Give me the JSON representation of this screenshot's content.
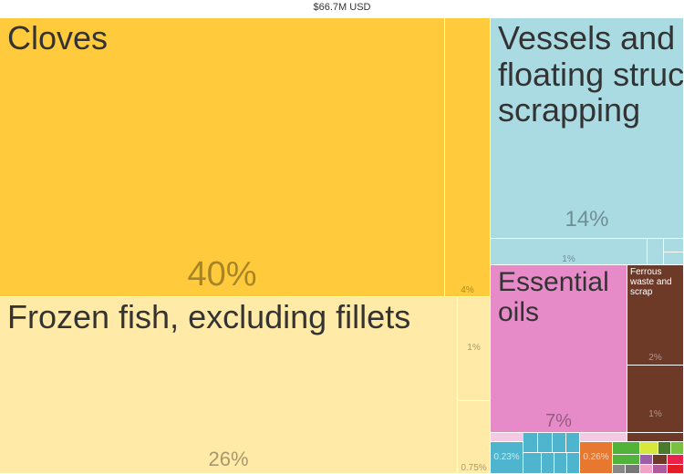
{
  "total": "$66.7M USD",
  "chart_data": {
    "type": "treemap",
    "title": "$66.7M USD",
    "items": [
      {
        "name": "Cloves",
        "share": "40%",
        "color": "#ffcb3d"
      },
      {
        "name": "",
        "share": "4%",
        "color": "#ffcb3d"
      },
      {
        "name": "Frozen fish, excluding fillets",
        "share": "26%",
        "color": "#ffeaa7"
      },
      {
        "name": "",
        "share": "1%",
        "color": "#ffeaa7"
      },
      {
        "name": "",
        "share": "0.75%",
        "color": "#ffeaa7"
      },
      {
        "name": "Vessels and other floating structures for scrapping",
        "share": "14%",
        "color": "#aadbe3"
      },
      {
        "name": "",
        "share": "1%",
        "color": "#aadbe3"
      },
      {
        "name": "Essential oils",
        "share": "7%",
        "color": "#e68bc8"
      },
      {
        "name": "Ferrous waste and scrap",
        "share": "2%",
        "color": "#6e3a28"
      },
      {
        "name": "",
        "share": "1%",
        "color": "#6e3a28"
      },
      {
        "name": "",
        "share": "0.23%",
        "color": "#4fb5ce"
      },
      {
        "name": "",
        "share": "0.26%",
        "color": "#e8772f"
      }
    ]
  }
}
